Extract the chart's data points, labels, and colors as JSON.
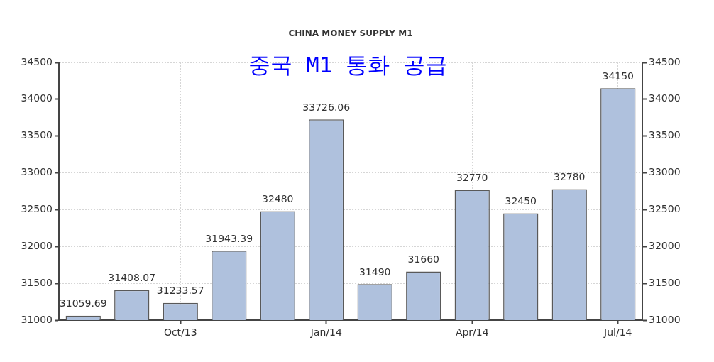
{
  "chart_data": {
    "type": "bar",
    "title": "CHINA MONEY SUPPLY M1",
    "subtitle": "중국 M1 통화 공급",
    "categories": [
      null,
      null,
      "Oct/13",
      null,
      null,
      "Jan/14",
      null,
      null,
      "Apr/14",
      null,
      null,
      "Jul/14"
    ],
    "values": [
      31059.69,
      31408.07,
      31233.57,
      31943.39,
      32480,
      33726.06,
      31490,
      31660,
      32770,
      32450,
      32780,
      34150
    ],
    "color": "#afc1dd",
    "ylim": [
      31000,
      34500
    ],
    "yticks": [
      31000,
      31500,
      32000,
      32500,
      33000,
      33500,
      34000,
      34500
    ],
    "y2lim": [
      31000,
      34500
    ],
    "y2ticks": [
      31000,
      31500,
      32000,
      32500,
      33000,
      33500,
      34000,
      34500
    ],
    "grid": true,
    "data_labels": true
  }
}
